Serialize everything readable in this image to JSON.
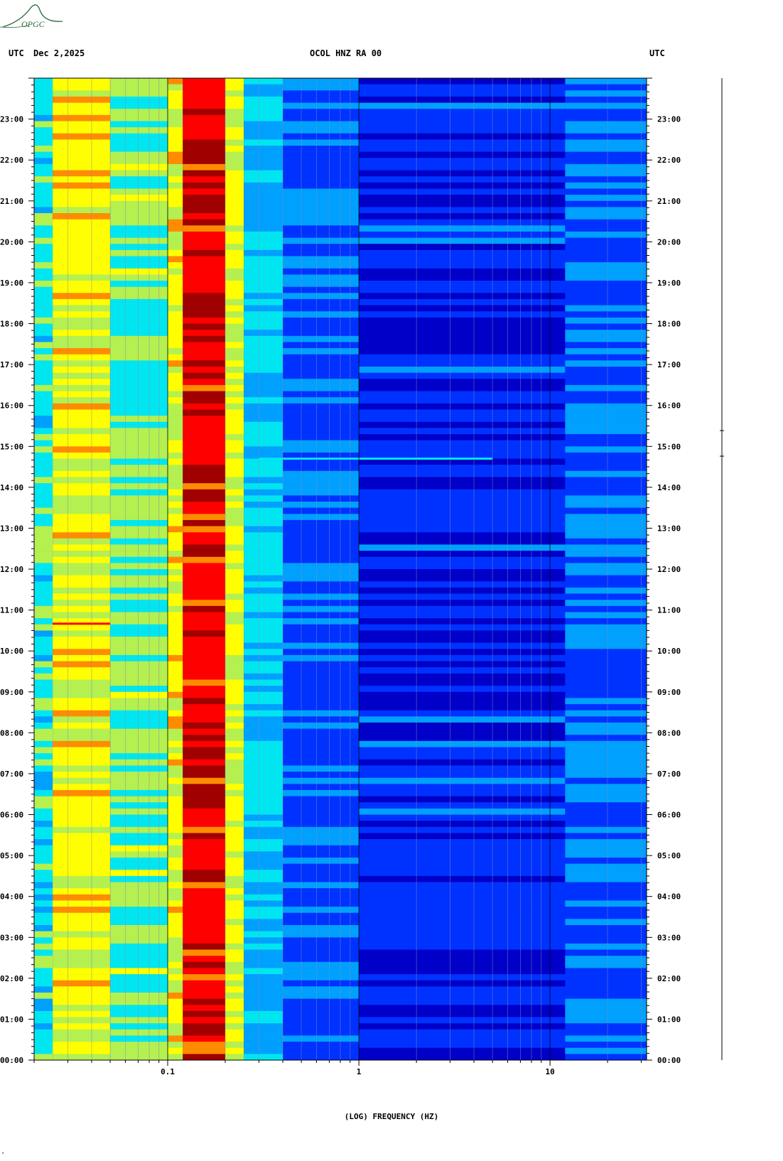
{
  "header": {
    "left_tz": "UTC",
    "date": "Dec 2,2025",
    "station": "OCOL HNZ RA 00",
    "right_tz": "UTC"
  },
  "logo": {
    "text": "OPGC",
    "color": "#2a6a3a"
  },
  "chart_data": {
    "type": "heatmap",
    "title": "OCOL HNZ RA 00",
    "xlabel": "(LOG) FREQUENCY (HZ)",
    "x_scale": "log",
    "xlim": [
      0.02,
      32
    ],
    "x_ticks": [
      {
        "value": 0.1,
        "label": "0.1"
      },
      {
        "value": 1,
        "label": "1"
      },
      {
        "value": 10,
        "label": "10"
      }
    ],
    "ylim": [
      0,
      24
    ],
    "y_ticks": [
      "00:00",
      "01:00",
      "02:00",
      "03:00",
      "04:00",
      "05:00",
      "06:00",
      "07:00",
      "08:00",
      "09:00",
      "10:00",
      "11:00",
      "12:00",
      "13:00",
      "14:00",
      "15:00",
      "16:00",
      "17:00",
      "18:00",
      "19:00",
      "20:00",
      "21:00",
      "22:00",
      "23:00"
    ],
    "colormap": [
      "#0000c8",
      "#0032ff",
      "#00a0ff",
      "#00e6f0",
      "#b4f050",
      "#ffff00",
      "#ff8c00",
      "#ff0000",
      "#a00000"
    ],
    "bands": [
      {
        "f_from": 0.02,
        "f_to": 0.025,
        "level": 3.2
      },
      {
        "f_from": 0.025,
        "f_to": 0.05,
        "level": 4.8
      },
      {
        "f_from": 0.05,
        "f_to": 0.1,
        "level": 3.7
      },
      {
        "f_from": 0.1,
        "f_to": 0.12,
        "level": 4.8
      },
      {
        "f_from": 0.12,
        "f_to": 0.2,
        "level": 7.2
      },
      {
        "f_from": 0.2,
        "f_to": 0.25,
        "level": 4.6
      },
      {
        "f_from": 0.25,
        "f_to": 0.4,
        "level": 2.6
      },
      {
        "f_from": 0.4,
        "f_to": 1,
        "level": 1.4
      },
      {
        "f_from": 1,
        "f_to": 12,
        "level": 0.7
      },
      {
        "f_from": 12,
        "f_to": 32,
        "level": 1.5
      }
    ],
    "events": [
      {
        "time": "14:42",
        "f_from": 0.3,
        "f_to": 5,
        "level": 2.5
      },
      {
        "time": "10:40",
        "f_from": 0.025,
        "f_to": 0.05,
        "level": 7
      }
    ],
    "grid": true
  },
  "footer": {
    "mark": "ᵃ"
  }
}
